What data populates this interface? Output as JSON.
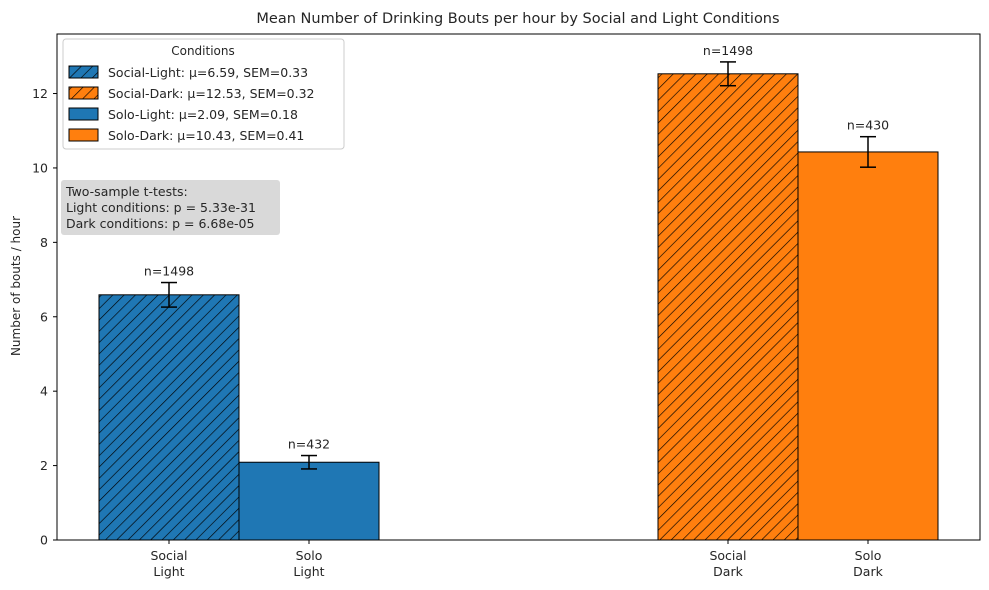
{
  "chart_data": {
    "type": "bar",
    "title": "Mean Number of Drinking Bouts per hour by Social and Light Conditions",
    "xlabel": "",
    "ylabel": "Number of bouts / hour",
    "ylim": [
      0,
      13.6
    ],
    "yticks": [
      0,
      2,
      4,
      6,
      8,
      10,
      12
    ],
    "grid": false,
    "legend": {
      "title": "Conditions",
      "placement": "top-left",
      "entries": [
        "Social-Light: μ=6.59, SEM=0.33",
        "Social-Dark: μ=12.53, SEM=0.32",
        "Solo-Light: μ=2.09, SEM=0.18",
        "Solo-Dark: μ=10.43, SEM=0.41"
      ]
    },
    "annotation": {
      "lines": [
        "Two-sample t-tests:",
        "Light conditions: p = 5.33e-31",
        "Dark conditions: p = 6.68e-05"
      ]
    },
    "bars": [
      {
        "category": "Social Light",
        "tick_lines": [
          "Social",
          "Light"
        ],
        "value": 6.59,
        "sem": 0.33,
        "n_label": "n=1498",
        "color": "#1f77b4",
        "hatched": true
      },
      {
        "category": "Solo Light",
        "tick_lines": [
          "Solo",
          "Light"
        ],
        "value": 2.09,
        "sem": 0.18,
        "n_label": "n=432",
        "color": "#1f77b4",
        "hatched": false
      },
      {
        "category": "Social Dark",
        "tick_lines": [
          "Social",
          "Dark"
        ],
        "value": 12.53,
        "sem": 0.32,
        "n_label": "n=1498",
        "color": "#ff7f0e",
        "hatched": true
      },
      {
        "category": "Solo Dark",
        "tick_lines": [
          "Solo",
          "Dark"
        ],
        "value": 10.43,
        "sem": 0.41,
        "n_label": "n=430",
        "color": "#ff7f0e",
        "hatched": false
      }
    ],
    "legend_styles": [
      {
        "color": "#1f77b4",
        "hatched": true
      },
      {
        "color": "#ff7f0e",
        "hatched": true
      },
      {
        "color": "#1f77b4",
        "hatched": false
      },
      {
        "color": "#ff7f0e",
        "hatched": false
      }
    ]
  }
}
